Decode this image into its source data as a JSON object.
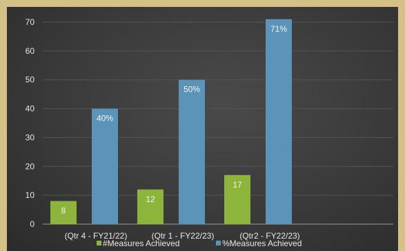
{
  "chart_data": {
    "type": "bar",
    "categories": [
      "(Qtr 4 - FY21/22)",
      "(Qtr 1 - FY22/23)",
      "(Qtr2 -  FY22/23)"
    ],
    "series": [
      {
        "name": "#Measures Achieved",
        "values": [
          8,
          12,
          17
        ],
        "labels": [
          "8",
          "12",
          "17"
        ],
        "color": "#8db53c"
      },
      {
        "name": "%Measures Achieved",
        "values": [
          40,
          50,
          71
        ],
        "labels": [
          "40%",
          "50%",
          "71%"
        ],
        "color": "#5b94b8"
      }
    ],
    "ylim": [
      0,
      70
    ],
    "yticks": [
      0,
      10,
      20,
      30,
      40,
      50,
      60,
      70
    ],
    "grid": true,
    "legend": "bottom",
    "title": "",
    "xlabel": "",
    "ylabel": ""
  },
  "colors": {
    "background": "#d6c08a",
    "plot_bg": "#3a3a3a",
    "grid": "#555555",
    "text": "#e8e8e8"
  }
}
